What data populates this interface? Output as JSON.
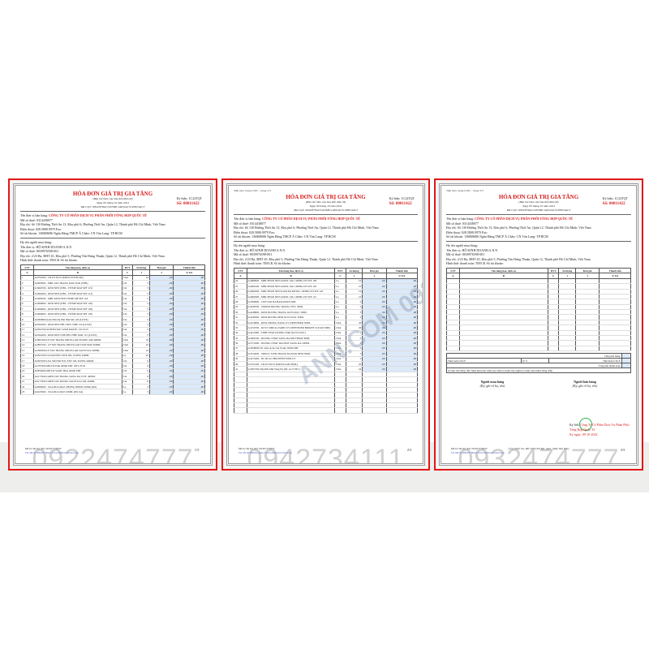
{
  "invoice": {
    "title": "HÓA ĐƠN GIÁ TRỊ GIA TĂNG",
    "subtitle": "(Bản thể hiện của hóa đơn điện tử)",
    "date": "Ngày 09 tháng 10 năm 2024",
    "mcqt": "Mã CQT: 00943F36A712676BC1A652AC5CE8674AC3",
    "symbol": "Ký hiệu: 1C24TQT",
    "number": "Số: 00011422",
    "seller_label": "Tên đơn vị bán hàng:",
    "seller": "CÔNG TY CỔ PHẦN DỊCH VỤ PHÂN PHỐI TỔNG HỢP QUỐC TẾ",
    "seller_tax": "Mã số thuế: 0314438077",
    "seller_addr": "Địa chỉ: Số 130 Đường Thới An 13, Khu phố 6, Phường Thới An, Quận 12, Thành phố Hồ Chí Minh, Việt Nam",
    "seller_phone": "Điện thoại: 028.5808.9979      Fax:",
    "seller_bank": "Số tài khoản: 136868686 Ngân Hàng TMCP Á Châu- CN Văn Lang- TP.HCM",
    "buyer_label": "Họ tên người mua hàng:",
    "buyer": "Tên đơn vị: HỘ KINH DOANH A.N.N",
    "buyer_tax": "Mã số thuế: 8039976598-001",
    "buyer_addr": "Địa chỉ: 2/23 Ba, ĐHT 45, Khu phố 5, Phường Tân Hưng Thuận, Quận 12, Thành phố Hồ Chí Minh, Việt Nam",
    "payment": "Hình thức thanh toán: TM/CK      Số tài khoản:",
    "headers": [
      "STT",
      "Tên hàng hóa, dịch vụ",
      "ĐVT",
      "Số lượng",
      "Đơn giá",
      "Thành tiền"
    ],
    "subheaders": [
      "A",
      "B",
      "C",
      "1",
      "2",
      "3=1x2"
    ]
  },
  "pages": [
    {
      "cont": "",
      "page_no": "1/3",
      "watermark": "0922474777",
      "rows": [
        [
          "1",
          "G6792300 - CR.OT NO 9 (MILO PVP BCDL)",
          "Chai",
          "10",
          ",00",
          ",00"
        ],
        [
          "2",
          "G6693900 - MBL TAY TRANG MAT NGR (WHI)",
          "Cái",
          "5",
          ",00",
          ",00"
        ],
        [
          "3",
          "G5966700 - KEM NEN (NBL - FITME MAP SPF 115)",
          "Cái",
          "5",
          ",00",
          ",00"
        ],
        [
          "4",
          "G5966400 - KEM NEN (NBL - FITME MAP SPF 112)",
          "Cái",
          "5",
          ",00",
          ",00"
        ],
        [
          "5",
          "G5966500 - MBL KEM NEN FITME MP SPF 118",
          "Cái",
          "5",
          ",00",
          ",00"
        ],
        [
          "6",
          "G5966800 - KEM NEN (NBL - FITME MAP SPF 118)",
          "Cái",
          "5",
          ",00",
          ",00"
        ],
        [
          "7",
          "G5966900 - KEM NEN (NBL - FITME MAP SPF 120)",
          "Cái",
          "5",
          ",00",
          ",00"
        ],
        [
          "8",
          "G5966600 - KEM NEN (NBL - FITME MAP SPF 105)",
          "Cái",
          "5",
          ",00",
          ",00"
        ],
        [
          "9",
          "G6583800-Kem Nền Dạ Phủ Như Mộ 120 (LUXE)",
          "Cái",
          "5",
          ",00",
          ",00"
        ],
        [
          "10",
          "G6592300 - KEM NEN PHU SIEU NHE 110 (LUXE)",
          "Cái",
          "5",
          ",00",
          ",00"
        ],
        [
          "11",
          "G6592700-SUPERSTAY LUMI MATTE 110 AS N",
          "Cái",
          "5",
          ",00",
          ",00"
        ],
        [
          "12",
          "G6592400 - KEM NEN CHE PHU NHE MAT 115 (LUXE)",
          "Cái",
          "5",
          ",00",
          ",00"
        ],
        [
          "13",
          "G2897400-LP TAY TRANG MICELLAR DUONG AM 400ML",
          "Chai",
          "10",
          ",00",
          ",00"
        ],
        [
          "14",
          "G2897500 - LP TAY TRANG MICELLAR TUOI MAT 400ML",
          "Chai",
          "10",
          ",00",
          ",00"
        ],
        [
          "15",
          "G2580300-LP TAY TRANG MICELLAR SACH SAU 400ML",
          "Chai",
          "10",
          ",00",
          ",00"
        ],
        [
          "16",
          "G6563100 CLEAR HOT ANTI OIL SLEEK 440ML",
          "Lọ",
          "10",
          ",00",
          ",00"
        ],
        [
          "17",
          "G6563500 LEA SILVER TOC EXT OIL SLEEK 440ML",
          "Cái",
          "6",
          ",00",
          ",00"
        ],
        [
          "18",
          "G2767900-MICLR Pink 400ml ERT 100% PCR",
          "Cái",
          "6",
          ",00",
          ",00"
        ],
        [
          "19",
          "G6856400-MICLR SAMC Blue 400ml ERT",
          "Cái",
          "6",
          ",00",
          ",00"
        ],
        [
          "20",
          "G6177600-GREN TAY TRANG SANG DA VITC 400ML",
          "Cái",
          "6",
          ",00",
          ",00"
        ],
        [
          "21",
          "G6177900-GREN TAY TRANG SACH SAU OIL 400ML",
          "Cái",
          "6",
          ",00",
          ",00"
        ],
        [
          "22",
          "G6998300 - SUA RUA MAT CHONG NHON 100ML (RS)",
          "Lọ",
          "5",
          ",00",
          ",00"
        ],
        [
          "23",
          "G6225900 - SUA RUA MAT 100ML (RS-SA)",
          "Lọ",
          "5",
          ",00",
          ",00"
        ]
      ]
    },
    {
      "cont": "Tiếp theo trang trước - trang 2/3",
      "page_no": "2/3",
      "watermark": "0942734111",
      "diag": "ANN.COM 0932474777",
      "rows": [
        [
          "24",
          "G4689900 - MBL PHAN NEN ADZIC 24G 12ĐHG.01T.WE 109",
          "Lọ",
          "10",
          ",00",
          ",00"
        ],
        [
          "25",
          "G4690100 - MBL PHAN NEN ADZIC 24G 12ĐHG.01T.WE 118",
          "Lọ",
          "10",
          ",00",
          ",00"
        ],
        [
          "26",
          "G4690200 - MBL PHAN NEN KAM DA ROYAL 12ĐHG.01T.WE 120",
          "Lọ",
          "10",
          ",00",
          ",00"
        ],
        [
          "27",
          "G4690300 - MBL PHAN NEN ADZIC 24G 12ĐHG.01T.WE 112",
          "Lọ",
          "10",
          ",00",
          ",00"
        ],
        [
          "28",
          "G3599900 - CON NAI DA BAR KEM 9.5ML",
          "Lọ",
          "5",
          ",00",
          ",00"
        ],
        [
          "29",
          "G4248700 - SERUM DUONG TRANG VITC 30ML",
          "Lọ",
          "5",
          ",00",
          ",00"
        ],
        [
          "30",
          "G4248800 - KEM DUONG TRANG GLYCOLIC 50ML",
          "Lọ",
          "5",
          ",00",
          ",00"
        ],
        [
          "31",
          "G4248300 - KEM DUONG DEM GLYCOLIC 50ML",
          "Lọ",
          "5",
          ",00",
          ",00"
        ],
        [
          "32",
          "G4159800 - KEM CHONG NANG UV DEFENDER 50ML",
          "Chai",
          "20",
          ",00",
          ",00"
        ],
        [
          "33",
          "G4159700 - KCN L'OREAL PARIS UV DEFENDER BRIGHT CLEAR 50ML",
          "Chai",
          "20",
          ",00",
          ",00"
        ],
        [
          "34",
          "G4411800 - TINH CHAT DUONG 50ml (GLYCOLIC)",
          "Chai",
          "5",
          ",00",
          ",00"
        ],
        [
          "35",
          "G2966700 - DUONG CHAT SANG DA MO THAM 30ML",
          "Chai",
          "5",
          ",00",
          ",00"
        ],
        [
          "36",
          "G3774300 - DUONG CHAT TAO BOT SANG DA 100ML",
          "Chai",
          "5",
          ",00",
          ",00"
        ],
        [
          "37",
          "G4658600-DC Anti-Acne Gel Foam 100ml ERT",
          "Chai",
          "5",
          ",00",
          ",00"
        ],
        [
          "38",
          "G2214000 - SRM LC KEM TRANG DA ĐAN DEM 50ML",
          "Chai",
          "5",
          ",00",
          ",00"
        ],
        [
          "39",
          "G4215400 - DC RUA CHM SPEM 50ML ET",
          "Chai",
          "5",
          ",00",
          ",00"
        ],
        [
          "40",
          "G2763100 - CR.OT NO 9 (MICELLAR 50ML)",
          "Chai",
          "20",
          ",00",
          ",00"
        ],
        [
          "41",
          "G4565700-Sữa Rửa Mặt Sáng Da (DC Gel VITC)",
          "Chai",
          "24",
          ",00",
          ",00"
        ]
      ]
    },
    {
      "cont": "Tiếp theo trang trước - trang 3/3",
      "page_no": "3/3",
      "watermark": "0932474777",
      "rows": [],
      "totals": {
        "subtotal_label": "Cộng tiền hàng:",
        "vat_rate_label": "Thuế suất GTGT:",
        "vat_rate": "10 %",
        "vat_label": "Tiền thuế GTGT:",
        "total_label": "Tổng tiền thanh toán:",
        "words_label": "Số tiền viết bằng chữ: Năm mươi hai triệu bảy trăm ba mươi bảy nghìn ba trăm chín mươi đồng chẵn"
      },
      "signatures": {
        "buyer": "Người mua hàng",
        "buyer_note": "(Ký, ghi rõ họ, tên)",
        "seller": "Người bán hàng",
        "seller_note": "(Ký, ghi rõ họ, tên)",
        "signed_by_label": "Ký bởi:",
        "signed_by": "Công Ty Cổ Phần Dịch Vụ Phân Phối Tổng Hợp Quốc Tế",
        "signed_date": "Ký ngày: 09-10-2024",
        "check_note": "(Cần kiểm tra, đối chiếu khi lập, giao, nhận hóa đơn)"
      }
    }
  ],
  "footer": {
    "lookup_code": "Mã tra cứu hóa đơn: 10CKCY7NUN",
    "lookup_site": "Tra cứu tại Website: https://www.meinvoice.vn/tra-cuu"
  }
}
